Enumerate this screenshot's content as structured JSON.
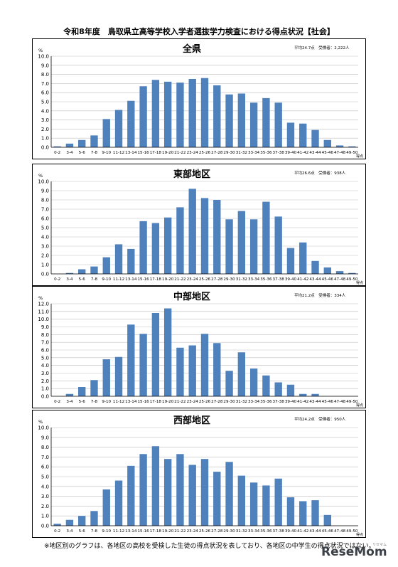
{
  "page": {
    "title": "令和8年度　鳥取県立高等学校入学者選抜学力検査における得点状況【社会】",
    "footnote": "※地区別のグラフは、各地区の高校を受検した生徒の得点状況を表しており、各地区の中学生の得点状況ではない。",
    "logo_text": "ReseMom",
    "logo_sub": "リセマム"
  },
  "style": {
    "bar_color": "#4f81bd",
    "grid_color": "#bfbfbf"
  },
  "chart_data": [
    {
      "type": "bar",
      "title": "全県",
      "stats": "平均24.7点　受検者：2,222人",
      "y_unit": "%",
      "x_unit": "得点",
      "ylim": [
        0,
        10
      ],
      "ystep": 1,
      "categories": [
        "0-2",
        "3-4",
        "5-6",
        "7-8",
        "9-10",
        "11-12",
        "13-14",
        "15-16",
        "17-18",
        "19-20",
        "21-22",
        "23-24",
        "25-26",
        "27-28",
        "29-30",
        "31-32",
        "33-34",
        "35-36",
        "37-38",
        "39-40",
        "41-42",
        "43-44",
        "45-46",
        "47-48",
        "49-50"
      ],
      "values": [
        0.1,
        0.4,
        0.8,
        1.3,
        3.1,
        4.1,
        5.1,
        6.7,
        7.4,
        7.2,
        7.1,
        7.5,
        7.6,
        6.8,
        5.8,
        5.9,
        4.9,
        5.4,
        4.9,
        2.7,
        2.6,
        1.9,
        0.8,
        0.2,
        0.1
      ]
    },
    {
      "type": "bar",
      "title": "東部地区",
      "stats": "平均26.6点　受検者：938人",
      "y_unit": "%",
      "x_unit": "得点",
      "ylim": [
        0,
        10
      ],
      "ystep": 1,
      "categories": [
        "0-2",
        "3-4",
        "5-6",
        "7-8",
        "9-10",
        "11-12",
        "13-14",
        "15-16",
        "17-18",
        "19-20",
        "21-22",
        "23-24",
        "25-26",
        "27-28",
        "29-30",
        "31-32",
        "33-34",
        "35-36",
        "37-38",
        "39-40",
        "41-42",
        "43-44",
        "45-46",
        "47-48",
        "49-50"
      ],
      "values": [
        0.0,
        0.1,
        0.5,
        0.8,
        1.8,
        3.2,
        2.7,
        5.7,
        5.5,
        6.1,
        7.2,
        9.2,
        8.2,
        8.0,
        5.9,
        6.8,
        5.9,
        7.8,
        6.2,
        2.8,
        3.4,
        1.4,
        0.7,
        0.3,
        0.1
      ]
    },
    {
      "type": "bar",
      "title": "中部地区",
      "stats": "平均21.2点　受検者：334人",
      "y_unit": "%",
      "x_unit": "得点",
      "ylim": [
        0,
        12
      ],
      "ystep": 1,
      "categories": [
        "0-2",
        "3-4",
        "5-6",
        "7-8",
        "9-10",
        "11-12",
        "13-14",
        "15-16",
        "17-18",
        "19-20",
        "21-22",
        "23-24",
        "25-26",
        "27-28",
        "29-30",
        "31-32",
        "33-34",
        "35-36",
        "37-38",
        "39-40",
        "41-42",
        "43-44",
        "45-46",
        "47-48",
        "49-50"
      ],
      "values": [
        0.0,
        0.3,
        1.2,
        2.1,
        4.8,
        5.1,
        9.3,
        8.1,
        10.8,
        11.4,
        6.3,
        6.6,
        8.1,
        6.9,
        3.3,
        5.7,
        3.6,
        2.7,
        1.8,
        1.5,
        0.3,
        0.3,
        0.0,
        0.0,
        0.0
      ]
    },
    {
      "type": "bar",
      "title": "西部地区",
      "stats": "平均24.2点　受検者：950人",
      "y_unit": "%",
      "x_unit": "得点",
      "ylim": [
        0,
        10
      ],
      "ystep": 1,
      "categories": [
        "0-2",
        "3-4",
        "5-6",
        "7-8",
        "9-10",
        "11-12",
        "13-14",
        "15-16",
        "17-18",
        "19-20",
        "21-22",
        "23-24",
        "25-26",
        "27-28",
        "29-30",
        "31-32",
        "33-34",
        "35-36",
        "37-38",
        "39-40",
        "41-42",
        "43-44",
        "45-46",
        "47-48",
        "49-50"
      ],
      "values": [
        0.2,
        0.6,
        1.0,
        1.5,
        3.7,
        4.6,
        6.1,
        7.3,
        8.1,
        6.8,
        7.3,
        6.2,
        6.8,
        5.5,
        6.5,
        5.1,
        4.4,
        4.1,
        4.8,
        2.9,
        2.5,
        2.6,
        1.1,
        0.0,
        0.0
      ]
    }
  ]
}
